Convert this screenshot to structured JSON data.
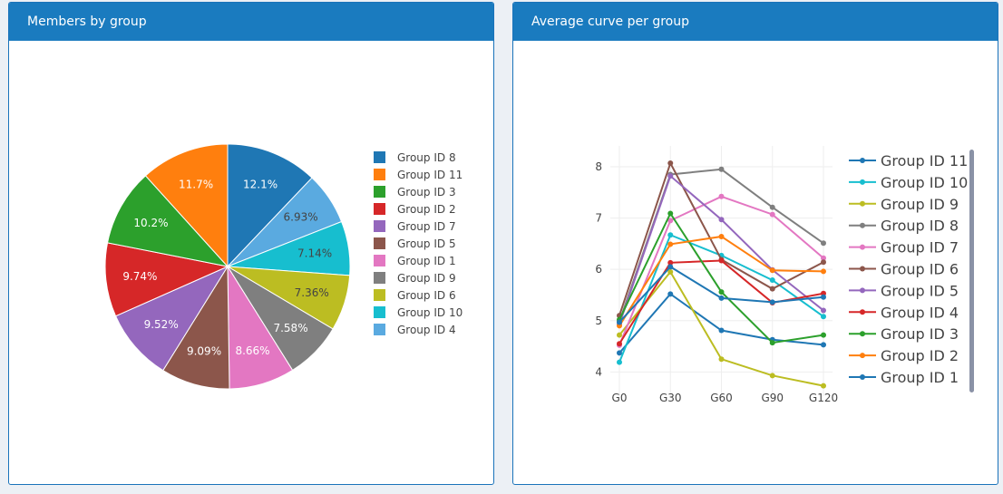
{
  "panels": {
    "left_title": "Members by group",
    "right_title": "Average curve per group"
  },
  "chart_data": [
    {
      "type": "pie",
      "slices": [
        {
          "label": "Group ID 8",
          "value": 12.1,
          "text": "12.1%",
          "color": "#1f77b4"
        },
        {
          "label": "Group ID 4",
          "value": 6.93,
          "text": "6.93%",
          "color": "#5aaae0"
        },
        {
          "label": "Group ID 10",
          "value": 7.14,
          "text": "7.14%",
          "color": "#17becf"
        },
        {
          "label": "Group ID 6",
          "value": 7.36,
          "text": "7.36%",
          "color": "#bcbd22"
        },
        {
          "label": "Group ID 9",
          "value": 7.58,
          "text": "7.58%",
          "color": "#7f7f7f"
        },
        {
          "label": "Group ID 1",
          "value": 8.66,
          "text": "8.66%",
          "color": "#e377c2"
        },
        {
          "label": "Group ID 5",
          "value": 9.09,
          "text": "9.09%",
          "color": "#8c564b"
        },
        {
          "label": "Group ID 7",
          "value": 9.52,
          "text": "9.52%",
          "color": "#9467bd"
        },
        {
          "label": "Group ID 2",
          "value": 9.74,
          "text": "9.74%",
          "color": "#d62728"
        },
        {
          "label": "Group ID 3",
          "value": 10.2,
          "text": "10.2%",
          "color": "#2ca02c"
        },
        {
          "label": "Group ID 11",
          "value": 11.7,
          "text": "11.7%",
          "color": "#ff7f0e"
        }
      ],
      "legend": [
        {
          "label": "Group ID 8",
          "color": "#1f77b4"
        },
        {
          "label": "Group ID 11",
          "color": "#ff7f0e"
        },
        {
          "label": "Group ID 3",
          "color": "#2ca02c"
        },
        {
          "label": "Group ID 2",
          "color": "#d62728"
        },
        {
          "label": "Group ID 7",
          "color": "#9467bd"
        },
        {
          "label": "Group ID 5",
          "color": "#8c564b"
        },
        {
          "label": "Group ID 1",
          "color": "#e377c2"
        },
        {
          "label": "Group ID 9",
          "color": "#7f7f7f"
        },
        {
          "label": "Group ID 6",
          "color": "#bcbd22"
        },
        {
          "label": "Group ID 10",
          "color": "#17becf"
        },
        {
          "label": "Group ID 4",
          "color": "#5aaae0"
        }
      ],
      "legend_position": "right"
    },
    {
      "type": "line",
      "categories": [
        "G0",
        "G30",
        "G60",
        "G90",
        "G120"
      ],
      "ylim": [
        3.6,
        8.3
      ],
      "yticks": [
        4,
        5,
        6,
        7,
        8
      ],
      "grid": true,
      "legend_position": "right",
      "series": [
        {
          "name": "Group ID 11",
          "color": "#1f77b4",
          "values": [
            4.37,
            5.52,
            4.81,
            4.63,
            4.53
          ]
        },
        {
          "name": "Group ID 10",
          "color": "#17becf",
          "values": [
            4.19,
            6.67,
            6.27,
            5.79,
            5.08
          ]
        },
        {
          "name": "Group ID 9",
          "color": "#bcbd22",
          "values": [
            4.72,
            5.95,
            4.25,
            3.93,
            3.73
          ]
        },
        {
          "name": "Group ID 8",
          "color": "#7f7f7f",
          "values": [
            4.98,
            7.85,
            7.95,
            7.21,
            6.51
          ]
        },
        {
          "name": "Group ID 7",
          "color": "#e377c2",
          "values": [
            4.52,
            6.95,
            7.42,
            7.07,
            6.22
          ]
        },
        {
          "name": "Group ID 6",
          "color": "#8c564b",
          "values": [
            5.1,
            8.07,
            6.19,
            5.62,
            6.14
          ]
        },
        {
          "name": "Group ID 5",
          "color": "#9467bd",
          "values": [
            4.93,
            7.82,
            6.97,
            5.99,
            5.2
          ]
        },
        {
          "name": "Group ID 4",
          "color": "#d62728",
          "values": [
            4.55,
            6.13,
            6.17,
            5.35,
            5.53
          ]
        },
        {
          "name": "Group ID 3",
          "color": "#2ca02c",
          "values": [
            5.02,
            7.09,
            5.56,
            4.57,
            4.72
          ]
        },
        {
          "name": "Group ID 2",
          "color": "#ff7f0e",
          "values": [
            4.9,
            6.49,
            6.64,
            5.98,
            5.96
          ]
        },
        {
          "name": "Group ID 1",
          "color": "#1f77b4",
          "values": [
            4.97,
            6.05,
            5.44,
            5.36,
            5.46
          ]
        }
      ]
    }
  ]
}
